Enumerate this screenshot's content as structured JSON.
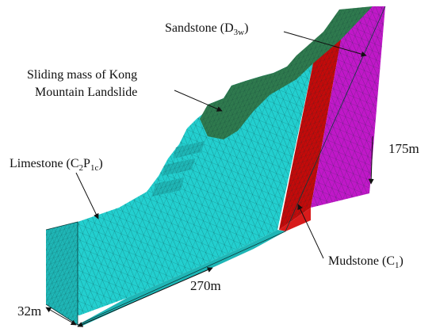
{
  "labels": {
    "sandstone": {
      "name": "Sandstone",
      "open": " (D",
      "sub": "3w",
      "close": ")"
    },
    "sliding_line1": "Sliding mass of Kong",
    "sliding_line2": "Mountain Landslide",
    "limestone": {
      "name": "Limestone",
      "open": " (C",
      "sub1": "2",
      "mid": "P",
      "sub2": "1c",
      "close": ")"
    },
    "mudstone": {
      "name": "Mudstone",
      "open": " (C",
      "sub": "1",
      "close": ")"
    }
  },
  "dimensions": {
    "height": "175m",
    "length": "270m",
    "width": "32m"
  },
  "colors": {
    "limestone": "#23cfcf",
    "limestone_side": "#1fb6b6",
    "sandstone": "#2f7a4e",
    "mudstone": "#c40a0a",
    "mudstone_top": "#d81b1b",
    "upper_layer": "#c018c8",
    "mesh": "#0c4a4a"
  }
}
